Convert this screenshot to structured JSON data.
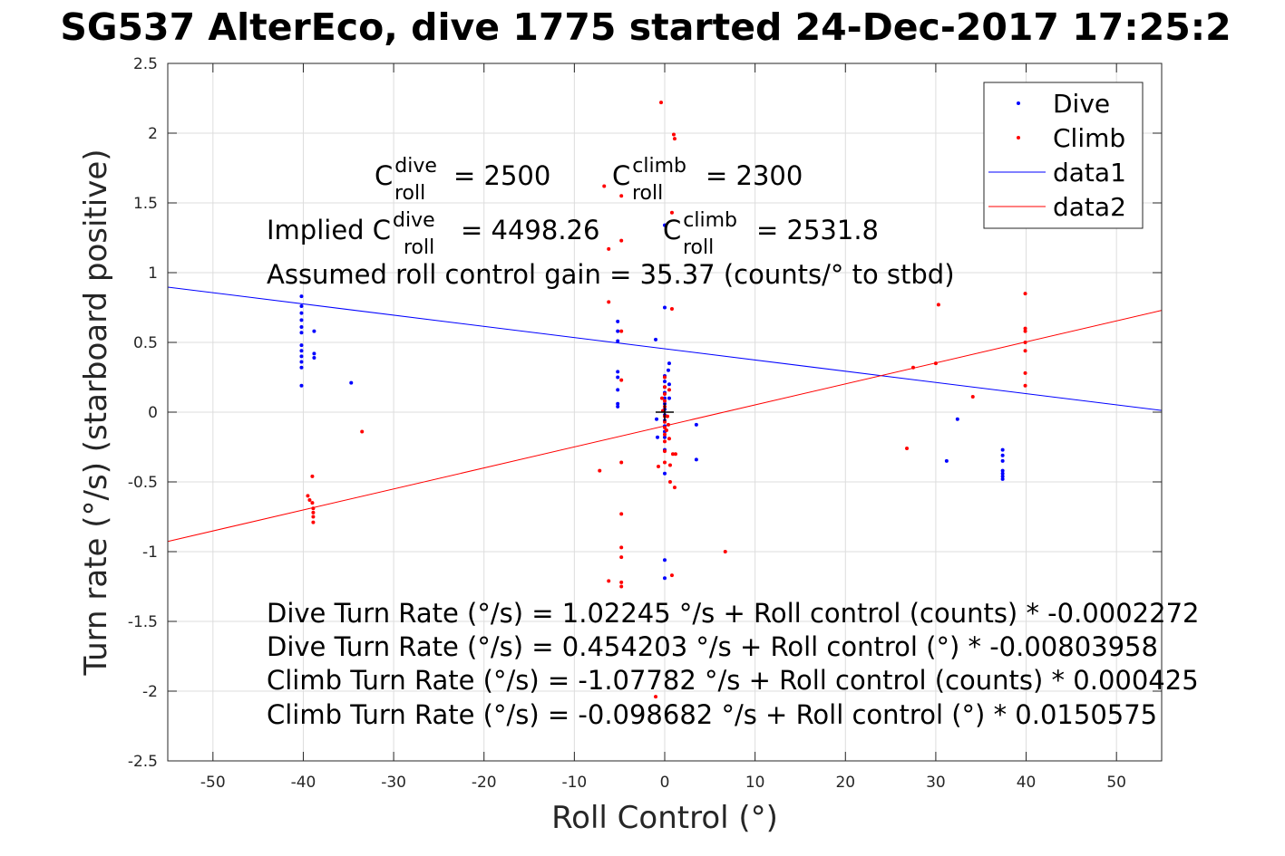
{
  "chart_data": {
    "type": "scatter",
    "title": "SG537 AlterEco, dive 1775 started 24-Dec-2017 17:25:2",
    "xlabel": "Roll Control (°)",
    "ylabel": "Turn rate (°/s) (starboard positive)",
    "xlim": [
      -55,
      55
    ],
    "ylim": [
      -2.5,
      2.5
    ],
    "xticks": [
      -50,
      -40,
      -30,
      -20,
      -10,
      0,
      10,
      20,
      30,
      40,
      50
    ],
    "yticks": [
      -2.5,
      -2,
      -1.5,
      -1,
      -0.5,
      0,
      0.5,
      1,
      1.5,
      2,
      2.5
    ],
    "grid": true,
    "legend_position": "top-right",
    "legend": [
      "Dive",
      "Climb",
      "data1",
      "data2"
    ],
    "series": [
      {
        "name": "Dive",
        "kind": "points",
        "color": "#0000ff",
        "points": [
          [
            -40.2,
            0.83
          ],
          [
            -40.2,
            0.76
          ],
          [
            -40.2,
            0.71
          ],
          [
            -40.2,
            0.66
          ],
          [
            -40.2,
            0.61
          ],
          [
            -40.2,
            0.57
          ],
          [
            -40.2,
            0.48
          ],
          [
            -40.2,
            0.44
          ],
          [
            -40.2,
            0.4
          ],
          [
            -40.2,
            0.36
          ],
          [
            -40.2,
            0.32
          ],
          [
            -40.2,
            0.19
          ],
          [
            -38.8,
            0.58
          ],
          [
            -38.8,
            0.42
          ],
          [
            -38.8,
            0.39
          ],
          [
            -34.7,
            0.21
          ],
          [
            -5.2,
            0.65
          ],
          [
            -5.2,
            0.58
          ],
          [
            -5.2,
            0.51
          ],
          [
            -5.2,
            0.29
          ],
          [
            -5.2,
            0.25
          ],
          [
            -5.2,
            0.16
          ],
          [
            -5.2,
            0.06
          ],
          [
            -5.2,
            0.04
          ],
          [
            -1.0,
            0.52
          ],
          [
            -0.9,
            -0.05
          ],
          [
            -0.8,
            -0.18
          ],
          [
            0.0,
            1.34
          ],
          [
            0.0,
            0.75
          ],
          [
            0.0,
            0.26
          ],
          [
            0.0,
            0.22
          ],
          [
            0.0,
            0.18
          ],
          [
            0.0,
            0.14
          ],
          [
            0.0,
            0.1
          ],
          [
            0.0,
            0.06
          ],
          [
            0.0,
            0.02
          ],
          [
            0.0,
            -0.02
          ],
          [
            0.0,
            -0.06
          ],
          [
            0.0,
            -0.1
          ],
          [
            0.0,
            -0.14
          ],
          [
            0.0,
            -0.18
          ],
          [
            0.0,
            -0.27
          ],
          [
            0.0,
            -0.44
          ],
          [
            0.0,
            -1.06
          ],
          [
            0.0,
            -1.19
          ],
          [
            0.4,
            0.3
          ],
          [
            0.5,
            0.35
          ],
          [
            0.5,
            0.2
          ],
          [
            0.5,
            0.1
          ],
          [
            3.5,
            -0.09
          ],
          [
            3.5,
            -0.34
          ],
          [
            31.2,
            -0.35
          ],
          [
            32.4,
            -0.05
          ],
          [
            37.4,
            -0.27
          ],
          [
            37.4,
            -0.31
          ],
          [
            37.4,
            -0.35
          ],
          [
            37.4,
            -0.42
          ],
          [
            37.4,
            -0.44
          ],
          [
            37.4,
            -0.46
          ],
          [
            37.4,
            -0.48
          ]
        ]
      },
      {
        "name": "Climb",
        "kind": "points",
        "color": "#ff0000",
        "points": [
          [
            -33.5,
            -0.14
          ],
          [
            -39.5,
            -0.6
          ],
          [
            -39.3,
            -0.63
          ],
          [
            -39.0,
            -0.46
          ],
          [
            -39.0,
            -0.65
          ],
          [
            -38.9,
            -0.69
          ],
          [
            -38.9,
            -0.72
          ],
          [
            -38.9,
            -0.75
          ],
          [
            -38.9,
            -0.79
          ],
          [
            -7.2,
            -0.42
          ],
          [
            -6.7,
            1.62
          ],
          [
            -6.2,
            1.17
          ],
          [
            -6.2,
            0.79
          ],
          [
            -6.2,
            -1.21
          ],
          [
            -4.8,
            1.55
          ],
          [
            -4.8,
            1.23
          ],
          [
            -4.8,
            0.58
          ],
          [
            -4.8,
            0.23
          ],
          [
            -4.8,
            -0.36
          ],
          [
            -4.8,
            -0.73
          ],
          [
            -4.8,
            -0.97
          ],
          [
            -4.8,
            -1.04
          ],
          [
            -4.8,
            -1.22
          ],
          [
            -4.8,
            -1.25
          ],
          [
            -1.0,
            -2.04
          ],
          [
            -0.7,
            -0.39
          ],
          [
            -0.4,
            2.22
          ],
          [
            -0.3,
            0.1
          ],
          [
            -0.2,
            0.01
          ],
          [
            0.0,
            0.25
          ],
          [
            0.0,
            0.18
          ],
          [
            0.0,
            0.13
          ],
          [
            0.0,
            0.08
          ],
          [
            0.0,
            0.04
          ],
          [
            0.0,
            -0.03
          ],
          [
            0.0,
            -0.07
          ],
          [
            0.0,
            -0.11
          ],
          [
            0.0,
            -0.16
          ],
          [
            0.0,
            -0.21
          ],
          [
            0.0,
            -0.28
          ],
          [
            0.0,
            -0.36
          ],
          [
            0.2,
            -0.13
          ],
          [
            0.3,
            -0.03
          ],
          [
            0.4,
            -0.09
          ],
          [
            0.5,
            0.16
          ],
          [
            0.5,
            -0.19
          ],
          [
            0.6,
            -0.38
          ],
          [
            0.6,
            -0.5
          ],
          [
            0.8,
            1.43
          ],
          [
            0.8,
            0.74
          ],
          [
            0.8,
            -1.17
          ],
          [
            0.9,
            -0.3
          ],
          [
            1.0,
            1.99
          ],
          [
            1.1,
            1.96
          ],
          [
            1.1,
            -0.54
          ],
          [
            1.2,
            -0.3
          ],
          [
            6.7,
            -1.0
          ],
          [
            26.8,
            -0.26
          ],
          [
            27.5,
            0.32
          ],
          [
            30.0,
            0.35
          ],
          [
            30.3,
            0.77
          ],
          [
            34.1,
            0.11
          ],
          [
            39.9,
            0.85
          ],
          [
            39.9,
            0.6
          ],
          [
            39.9,
            0.58
          ],
          [
            39.9,
            0.5
          ],
          [
            39.9,
            0.44
          ],
          [
            39.9,
            0.28
          ],
          [
            39.9,
            0.19
          ]
        ]
      },
      {
        "name": "data1",
        "kind": "line",
        "color": "#0000ff",
        "x": [
          -55,
          55
        ],
        "y": [
          0.8964,
          0.012
        ]
      },
      {
        "name": "data2",
        "kind": "line",
        "color": "#ff0000",
        "x": [
          -55,
          55
        ],
        "y": [
          -0.9269,
          0.7295
        ]
      }
    ],
    "marker": {
      "kind": "cross",
      "x": 0,
      "y": 0,
      "color": "#000000"
    }
  },
  "annotations": {
    "c_dive_prefix": "C",
    "c_dive_sup": "dive",
    "c_dive_sub": "roll",
    "c_dive_value": "= 2500",
    "c_climb_prefix": "C",
    "c_climb_sup": "climb",
    "c_climb_sub": "roll",
    "c_climb_value": "= 2300",
    "implied_prefix": "Implied C",
    "implied_dive_sup": "dive",
    "implied_dive_sub": "roll",
    "implied_dive_value": "= 4498.26",
    "implied_climb_prefix": "C",
    "implied_climb_sup": "climb",
    "implied_climb_sub": "roll",
    "implied_climb_value": "= 2531.8",
    "gain_line": "Assumed roll control gain = 35.37 (counts/° to stbd)",
    "eq1": "Dive Turn Rate (°/s) = 1.02245 °/s + Roll control (counts) * -0.0002272",
    "eq2": "Dive Turn Rate (°/s) = 0.454203 °/s + Roll control (°) * -0.00803958",
    "eq3": "Climb Turn Rate (°/s) = -1.07782 °/s + Roll control (counts) * 0.000425",
    "eq4": "Climb Turn Rate (°/s) = -0.098682 °/s + Roll control (°) * 0.0150575"
  }
}
